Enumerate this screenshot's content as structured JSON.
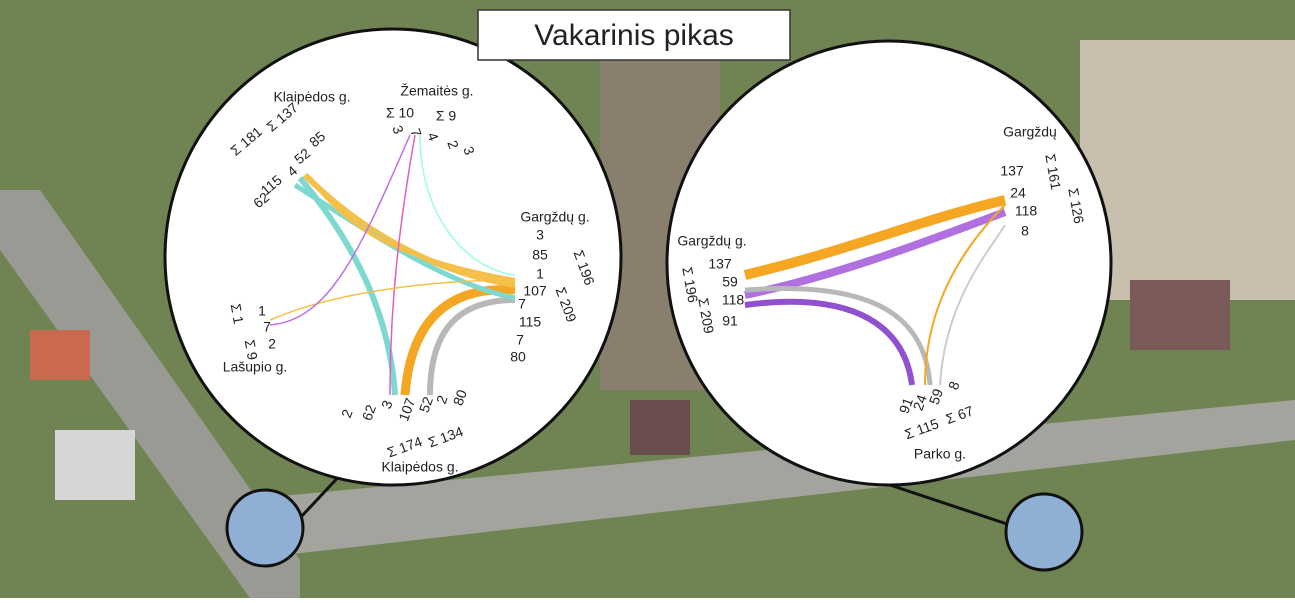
{
  "title": "Vakarinis pikas",
  "intersections": [
    {
      "approaches": [
        {
          "name": "Klaipėdos g.",
          "sums": [
            "Σ 181",
            "Σ 137"
          ],
          "flows": [
            85,
            52,
            4,
            115,
            62
          ]
        },
        {
          "name": "Žemaitės g.",
          "sums": [
            "Σ 10",
            "Σ 9"
          ],
          "flows": [
            3,
            7,
            4,
            2,
            3
          ]
        },
        {
          "name": "Gargždų g.",
          "sums": [
            "Σ 196",
            "Σ 209"
          ],
          "flows": [
            3,
            85,
            1,
            107,
            7,
            115,
            7,
            80
          ]
        },
        {
          "name": "Lašupio g.",
          "sums": [
            "Σ 1",
            "Σ 9"
          ],
          "flows": [
            1,
            7,
            2
          ]
        },
        {
          "name": "Klaipėdos g.",
          "sums": [
            "Σ 174",
            "Σ 134"
          ],
          "flows": [
            2,
            3,
            62,
            107,
            52,
            2,
            80
          ]
        }
      ]
    },
    {
      "approaches": [
        {
          "name": "Gargždų",
          "sums": [
            "Σ 161",
            "Σ 126"
          ],
          "flows": [
            137,
            24,
            118,
            8
          ]
        },
        {
          "name": "Gargždų g.",
          "sums": [
            "Σ 196",
            "Σ 209"
          ],
          "flows": [
            137,
            59,
            118,
            91
          ]
        },
        {
          "name": "Parko g.",
          "sums": [
            "Σ 115",
            "Σ 67"
          ],
          "flows": [
            91,
            24,
            59,
            8
          ]
        }
      ]
    }
  ]
}
